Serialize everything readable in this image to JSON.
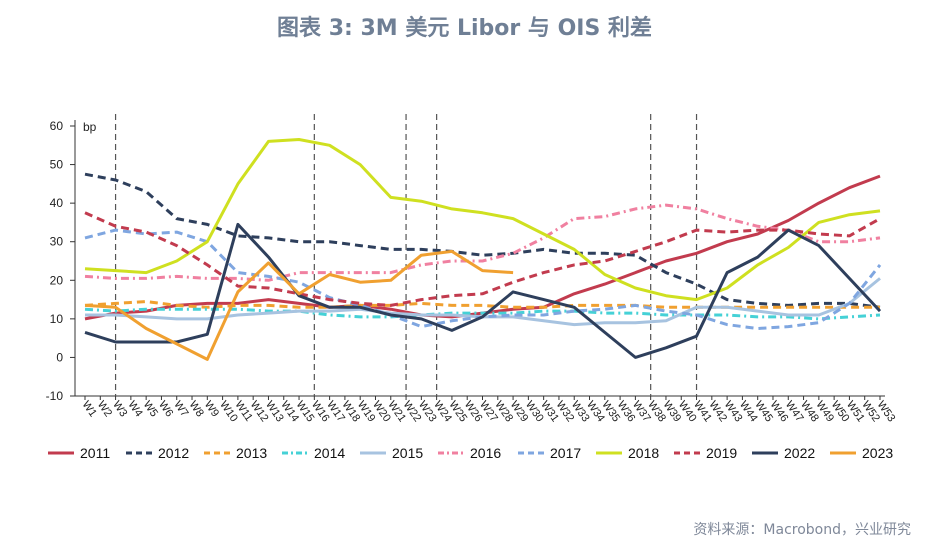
{
  "title": "图表 3:  3M 美元 Libor 与 OIS 利差",
  "source": "资料来源：Macrobond，兴业研究",
  "chart_data": {
    "type": "line",
    "ylabel": "bp",
    "ylim": [
      -10,
      60
    ],
    "yticks": [
      -10,
      0,
      10,
      20,
      30,
      40,
      50,
      60
    ],
    "xlim": [
      1,
      53
    ],
    "x_tick_labels": [
      "1",
      "2",
      "3",
      "4",
      "5",
      "6",
      "7",
      "8",
      "9",
      "10",
      "11",
      "12",
      "13",
      "14",
      "15",
      "16",
      "17",
      "18",
      "19",
      "20",
      "21",
      "22",
      "23",
      "24",
      "25",
      "26",
      "27",
      "28",
      "29",
      "30",
      "31",
      "32",
      "33",
      "34",
      "35",
      "36",
      "37",
      "38",
      "39",
      "40",
      "41",
      "42",
      "43",
      "44",
      "45",
      "46",
      "47",
      "48",
      "49",
      "50",
      "51",
      "52",
      "53"
    ],
    "x_tick_prefix": "W",
    "vlines": [
      3,
      16,
      22,
      24,
      38,
      41
    ],
    "legend_position": "bottom",
    "series": [
      {
        "name": "2011",
        "color": "#c23b4e",
        "dash": "solid",
        "x": [
          1,
          3,
          5,
          7,
          9,
          11,
          13,
          15,
          17,
          19,
          21,
          23,
          25,
          27,
          29,
          31,
          33,
          35,
          37,
          39,
          41,
          43,
          45,
          47,
          49,
          51,
          53
        ],
        "y": [
          10,
          11.5,
          12,
          13.5,
          14,
          14,
          15,
          14,
          13,
          13.5,
          12.5,
          11,
          10.5,
          11.5,
          12.5,
          13,
          16.5,
          19,
          22,
          25,
          27,
          30,
          32,
          35.5,
          40,
          44,
          47
        ]
      },
      {
        "name": "2012",
        "color": "#2e3f5c",
        "dash": "dashed",
        "x": [
          1,
          3,
          5,
          7,
          9,
          11,
          13,
          15,
          17,
          19,
          21,
          23,
          25,
          27,
          29,
          31,
          33,
          35,
          37,
          39,
          41,
          43,
          45,
          47,
          49,
          51,
          53
        ],
        "y": [
          47.5,
          46,
          43,
          36,
          34.5,
          31.5,
          31,
          30,
          30,
          29,
          28,
          28,
          27.5,
          26.5,
          27,
          28,
          27,
          27,
          26.5,
          22,
          19,
          15,
          14,
          13.5,
          14,
          14,
          13
        ]
      },
      {
        "name": "2013",
        "color": "#f0a030",
        "dash": "dashed",
        "x": [
          1,
          3,
          5,
          7,
          9,
          11,
          13,
          15,
          17,
          19,
          21,
          23,
          25,
          27,
          29,
          31,
          33,
          35,
          37,
          39,
          41,
          43,
          45,
          47,
          49,
          51,
          53
        ],
        "y": [
          13.5,
          14,
          14.5,
          13.5,
          13,
          13.5,
          13.5,
          13,
          13,
          13.5,
          13.5,
          14,
          13.5,
          13.5,
          13,
          13,
          13.5,
          13.5,
          13.5,
          13,
          13,
          13,
          13,
          13,
          13,
          13,
          13
        ]
      },
      {
        "name": "2014",
        "color": "#45d1d6",
        "dash": "dashdot",
        "x": [
          1,
          3,
          5,
          7,
          9,
          11,
          13,
          15,
          17,
          19,
          21,
          23,
          25,
          27,
          29,
          31,
          33,
          35,
          37,
          39,
          41,
          43,
          45,
          47,
          49,
          51,
          53
        ],
        "y": [
          12.5,
          12,
          12.5,
          12.5,
          12.5,
          12.5,
          12,
          12,
          11,
          10.5,
          10.5,
          11,
          11.5,
          11.5,
          11.5,
          12,
          12,
          11.5,
          11.5,
          11,
          11,
          11,
          10.5,
          10.5,
          10,
          10.5,
          11
        ]
      },
      {
        "name": "2015",
        "color": "#a7c3e0",
        "dash": "solid",
        "x": [
          1,
          3,
          5,
          7,
          9,
          11,
          13,
          15,
          17,
          19,
          21,
          23,
          25,
          27,
          29,
          31,
          33,
          35,
          37,
          39,
          41,
          43,
          45,
          47,
          49,
          51,
          53
        ],
        "y": [
          11,
          11,
          10.5,
          10,
          10,
          11,
          11.5,
          12,
          12,
          12.5,
          11.5,
          11,
          11,
          10.5,
          10.5,
          9.5,
          8.5,
          9,
          9,
          9.5,
          13,
          13,
          12,
          11,
          11,
          14,
          20.5
        ]
      },
      {
        "name": "2016",
        "color": "#f080a0",
        "dash": "dashdot",
        "x": [
          1,
          3,
          5,
          7,
          9,
          11,
          13,
          15,
          17,
          19,
          21,
          23,
          25,
          27,
          29,
          31,
          33,
          35,
          37,
          39,
          41,
          43,
          45,
          47,
          49,
          51,
          53
        ],
        "y": [
          21,
          20.5,
          20.5,
          21,
          20.5,
          20.5,
          20,
          22,
          22,
          22,
          22,
          24,
          25,
          25,
          27,
          31,
          36,
          36.5,
          38.5,
          39.5,
          38.5,
          36,
          34,
          33,
          30,
          30,
          31
        ]
      },
      {
        "name": "2017",
        "color": "#7fa6e0",
        "dash": "dashed",
        "x": [
          1,
          3,
          5,
          7,
          9,
          11,
          13,
          15,
          17,
          19,
          21,
          23,
          25,
          27,
          29,
          31,
          33,
          35,
          37,
          39,
          41,
          43,
          45,
          47,
          49,
          51,
          53
        ],
        "y": [
          31,
          33,
          32,
          32.5,
          30,
          22,
          21,
          19.5,
          15.5,
          13.5,
          11,
          8,
          9.5,
          10.5,
          11,
          11,
          12,
          12.5,
          13.5,
          12,
          11,
          8.5,
          7.5,
          8,
          9,
          14,
          24
        ]
      },
      {
        "name": "2018",
        "color": "#cfe020",
        "dash": "solid",
        "x": [
          1,
          3,
          5,
          7,
          9,
          11,
          13,
          15,
          17,
          19,
          21,
          23,
          25,
          27,
          29,
          31,
          33,
          35,
          37,
          39,
          41,
          43,
          45,
          47,
          49,
          51,
          53
        ],
        "y": [
          23,
          22.5,
          22,
          25,
          30,
          45,
          56,
          56.5,
          55,
          50,
          41.5,
          40.5,
          38.5,
          37.5,
          36,
          32,
          28,
          21.5,
          18,
          16,
          15,
          18,
          24,
          28.5,
          35,
          37,
          38
        ]
      },
      {
        "name": "2019",
        "color": "#c23b4e",
        "dash": "dashed",
        "x": [
          1,
          3,
          5,
          7,
          9,
          11,
          13,
          15,
          17,
          19,
          21,
          23,
          25,
          27,
          29,
          31,
          33,
          35,
          37,
          39,
          41,
          43,
          45,
          47,
          49,
          51,
          53
        ],
        "y": [
          37.5,
          34,
          32.5,
          29,
          24,
          18.5,
          18,
          16.5,
          15,
          14,
          13.5,
          15,
          16,
          16.5,
          19.5,
          22,
          24,
          25,
          27.5,
          30,
          33,
          32.5,
          33,
          33,
          32,
          31.5,
          36
        ]
      },
      {
        "name": "2022",
        "color": "#2e3f5c",
        "dash": "solid",
        "x": [
          1,
          3,
          5,
          7,
          9,
          11,
          13,
          15,
          17,
          19,
          21,
          23,
          25,
          27,
          29,
          31,
          33,
          35,
          37,
          39,
          41,
          43,
          45,
          47,
          49,
          51,
          53
        ],
        "y": [
          6.5,
          4,
          4,
          4,
          6,
          34.5,
          26,
          16,
          13,
          13,
          11,
          10,
          7,
          10.5,
          17,
          15,
          13,
          6.5,
          0,
          2.5,
          5.5,
          22,
          26,
          33,
          29,
          20.5,
          12
        ]
      },
      {
        "name": "2023",
        "color": "#f0a030",
        "dash": "solid",
        "x": [
          1,
          3,
          5,
          7,
          9,
          11,
          13,
          15,
          17,
          19,
          21,
          23,
          25,
          27,
          29
        ],
        "y": [
          13.5,
          13,
          7.5,
          3.5,
          -0.5,
          17,
          24.5,
          16.5,
          21.5,
          19.5,
          20,
          26.5,
          27.5,
          22.5,
          22
        ]
      }
    ]
  }
}
